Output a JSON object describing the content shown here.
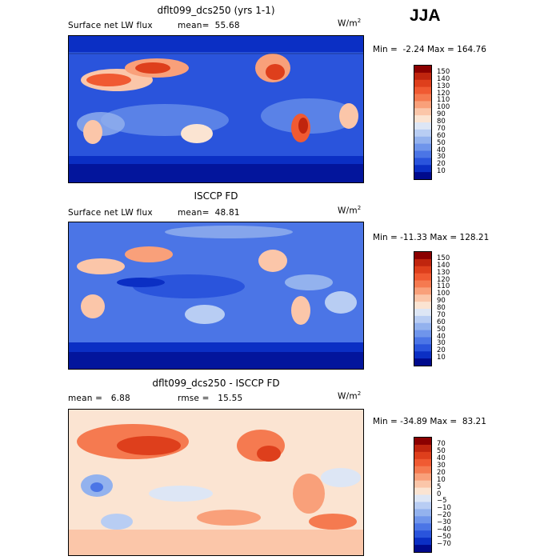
{
  "season": "JJA",
  "units": "W/m",
  "units_sup": "2",
  "panels": [
    {
      "title": "dflt099_dcs250 (yrs 1-1)",
      "label_left": "Surface net LW flux",
      "label_mid_key": "mean=",
      "label_mid_val": "55.68",
      "min": "-2.24",
      "max": "164.76",
      "palette": "seq",
      "colorbar_labels": [
        "150",
        "140",
        "130",
        "120",
        "110",
        "100",
        "90",
        "80",
        "70",
        "60",
        "50",
        "40",
        "30",
        "20",
        "10"
      ]
    },
    {
      "title": "ISCCP FD",
      "label_left": "Surface net LW flux",
      "label_mid_key": "mean=",
      "label_mid_val": "48.81",
      "min": "-11.33",
      "max": "128.21",
      "palette": "seq",
      "colorbar_labels": [
        "150",
        "140",
        "130",
        "120",
        "110",
        "100",
        "90",
        "80",
        "70",
        "60",
        "50",
        "40",
        "30",
        "20",
        "10"
      ]
    },
    {
      "title": "dflt099_dcs250 - ISCCP FD",
      "label_left_key": "mean =",
      "label_left_val": "6.88",
      "label_mid_key": "rmse =",
      "label_mid_val": "15.55",
      "min": "-34.89",
      "max": "83.21",
      "palette": "div",
      "colorbar_labels": [
        "70",
        "50",
        "40",
        "30",
        "20",
        "10",
        "5",
        "0",
        "−5",
        "−10",
        "−20",
        "−30",
        "−40",
        "−50",
        "−70"
      ]
    }
  ],
  "min_label": "Min =",
  "max_label": "Max =",
  "colors": {
    "seq": [
      "#8b0000",
      "#c0250e",
      "#de3f1c",
      "#f05a32",
      "#f57a50",
      "#f9a07a",
      "#fbc6a9",
      "#fbe4d2",
      "#dde6f5",
      "#b8cdf3",
      "#93b2ee",
      "#6f95eb",
      "#4b75e6",
      "#2a54dc",
      "#0b2fc4",
      "#000a8c"
    ],
    "div": [
      "#8b0000",
      "#c0250e",
      "#de3f1c",
      "#f05a32",
      "#f57a50",
      "#f9a07a",
      "#fbc6a9",
      "#fbe4d2",
      "#dde6f5",
      "#b8cdf3",
      "#93b2ee",
      "#6f95eb",
      "#4b75e6",
      "#2a54dc",
      "#0b2fc4",
      "#000a8c"
    ]
  }
}
